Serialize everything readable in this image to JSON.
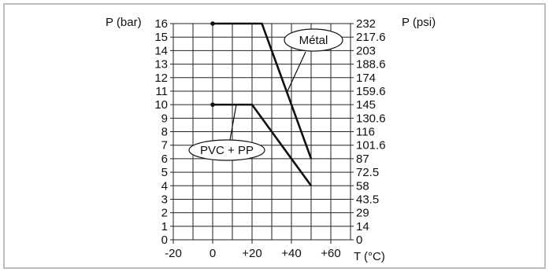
{
  "chart_data": {
    "type": "line",
    "xlabel": "T (°C)",
    "ylabel_left": "P (bar)",
    "ylabel_right": "P (psi)",
    "xlim": [
      -20,
      70
    ],
    "ylim": [
      0,
      16
    ],
    "x_ticks": [
      "-20",
      "0",
      "+20",
      "+40",
      "+60"
    ],
    "y_ticks_left": [
      "0",
      "1",
      "2",
      "3",
      "4",
      "5",
      "6",
      "7",
      "8",
      "9",
      "10",
      "11",
      "12",
      "13",
      "14",
      "15",
      "16"
    ],
    "y_ticks_right": [
      "0",
      "14",
      "29",
      "43.5",
      "58",
      "72.5",
      "87",
      "101.6",
      "116",
      "130.6",
      "145",
      "159.6",
      "174",
      "188.6",
      "203",
      "217.6",
      "232"
    ],
    "grid": true,
    "series": [
      {
        "name": "Métal",
        "x": [
          0,
          25,
          50
        ],
        "y": [
          16,
          16,
          6
        ]
      },
      {
        "name": "PVC + PP",
        "x": [
          0,
          20,
          50
        ],
        "y": [
          10,
          10,
          4
        ]
      }
    ],
    "series_color": "#111111",
    "grid_color": "#222222"
  }
}
